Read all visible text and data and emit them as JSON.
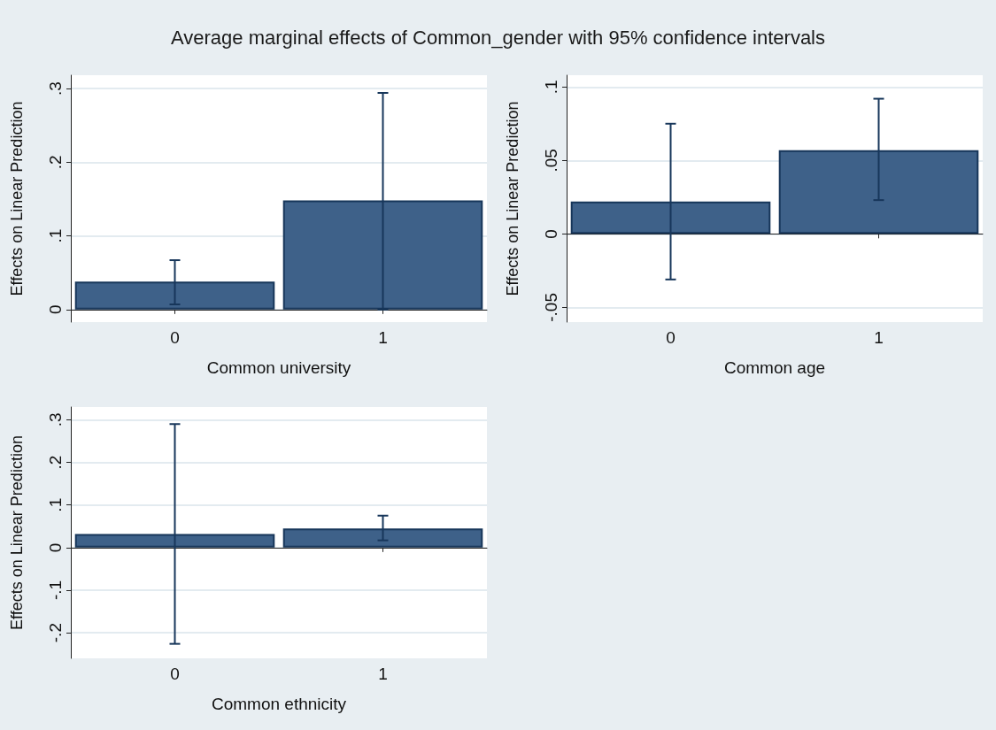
{
  "chart_data": [
    {
      "type": "bar",
      "title": "Average marginal effects of Common_gender with 95% confidence intervals",
      "xlabel": "Common university",
      "ylabel": "Effects on Linear Prediction",
      "categories": [
        "0",
        "1"
      ],
      "values": [
        0.038,
        0.148
      ],
      "errors": [
        [
          0.007,
          0.067
        ],
        [
          0.0,
          0.294
        ]
      ],
      "color": "#3e6189",
      "ylim": [
        -0.017,
        0.318
      ],
      "yticks": [
        {
          "value": 0,
          "label": "0"
        },
        {
          "value": 0.1,
          "label": ".1"
        },
        {
          "value": 0.2,
          "label": ".2"
        },
        {
          "value": 0.3,
          "label": ".3"
        }
      ],
      "grid": "y"
    },
    {
      "type": "bar",
      "xlabel": "Common age",
      "ylabel": "Effects on Linear Prediction",
      "categories": [
        "0",
        "1"
      ],
      "values": [
        0.022,
        0.057
      ],
      "errors": [
        [
          -0.031,
          0.075
        ],
        [
          0.023,
          0.092
        ]
      ],
      "color": "#3e6189",
      "ylim": [
        -0.06,
        0.108
      ],
      "yticks": [
        {
          "value": -0.05,
          "label": "-.05"
        },
        {
          "value": 0,
          "label": "0"
        },
        {
          "value": 0.05,
          "label": ".05"
        },
        {
          "value": 0.1,
          "label": ".1"
        }
      ],
      "grid": "y"
    },
    {
      "type": "bar",
      "xlabel": "Common ethnicity",
      "ylabel": "Effects on Linear Prediction",
      "categories": [
        "0",
        "1"
      ],
      "values": [
        0.032,
        0.045
      ],
      "errors": [
        [
          -0.226,
          0.29
        ],
        [
          0.017,
          0.075
        ]
      ],
      "color": "#3e6189",
      "ylim": [
        -0.26,
        0.33
      ],
      "yticks": [
        {
          "value": -0.2,
          "label": "-.2"
        },
        {
          "value": -0.1,
          "label": "-.1"
        },
        {
          "value": 0,
          "label": "0"
        },
        {
          "value": 0.1,
          "label": ".1"
        },
        {
          "value": 0.2,
          "label": ".2"
        },
        {
          "value": 0.3,
          "label": ".3"
        }
      ],
      "grid": "y"
    }
  ]
}
